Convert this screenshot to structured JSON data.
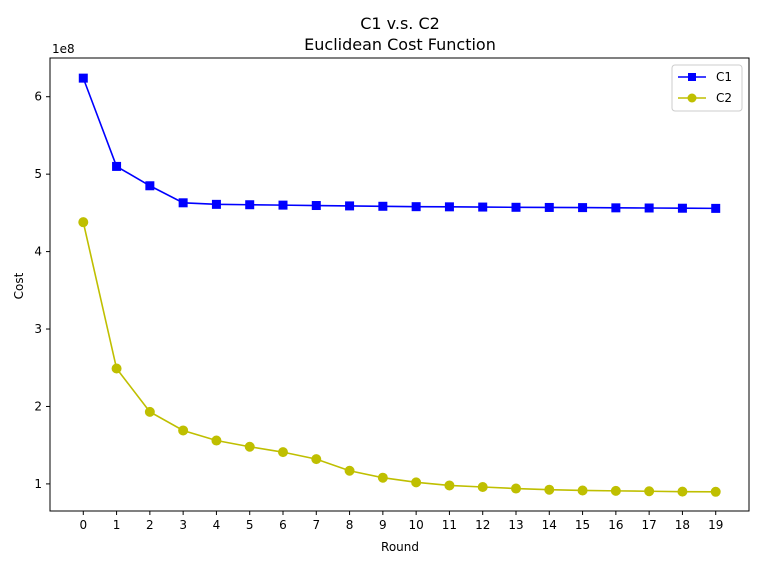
{
  "chart_data": {
    "type": "line",
    "title": "C1 v.s. C2",
    "subtitle": "Euclidean Cost Function",
    "xlabel": "Round",
    "ylabel": "Cost",
    "y_offset_label": "1e8",
    "x": [
      0,
      1,
      2,
      3,
      4,
      5,
      6,
      7,
      8,
      9,
      10,
      11,
      12,
      13,
      14,
      15,
      16,
      17,
      18,
      19
    ],
    "xlim": [
      -1,
      20
    ],
    "ylim": [
      0.65,
      6.5
    ],
    "y_ticks": [
      1,
      2,
      3,
      4,
      5,
      6
    ],
    "y_unit_multiplier": 100000000,
    "grid": false,
    "legend_position": "top-right",
    "series": [
      {
        "name": "C1",
        "color": "#0000ff",
        "marker": "square",
        "values": [
          6.24,
          5.1,
          4.85,
          4.63,
          4.61,
          4.605,
          4.6,
          4.595,
          4.59,
          4.585,
          4.58,
          4.578,
          4.575,
          4.572,
          4.57,
          4.568,
          4.565,
          4.563,
          4.56,
          4.558
        ]
      },
      {
        "name": "C2",
        "color": "#bfbf00",
        "marker": "circle",
        "values": [
          4.38,
          2.49,
          1.93,
          1.69,
          1.56,
          1.48,
          1.41,
          1.32,
          1.17,
          1.08,
          1.02,
          0.98,
          0.96,
          0.94,
          0.925,
          0.915,
          0.91,
          0.905,
          0.9,
          0.898
        ]
      }
    ]
  }
}
